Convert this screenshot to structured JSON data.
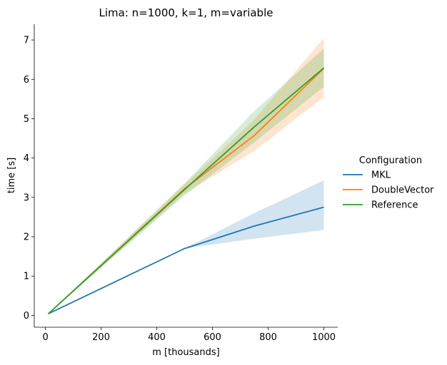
{
  "chart_data": {
    "type": "line",
    "title": "Lima: n=1000, k=1, m=variable",
    "xlabel": "m [thousands]",
    "ylabel": "time [s]",
    "xlim": [
      -40,
      1050
    ],
    "ylim": [
      -0.3,
      7.4
    ],
    "xticks": [
      0,
      200,
      400,
      600,
      800,
      1000
    ],
    "yticks": [
      0,
      1,
      2,
      3,
      4,
      5,
      6,
      7
    ],
    "grid": false,
    "legend": {
      "title": "Configuration",
      "placement": "right"
    },
    "x": [
      10,
      500,
      750,
      1000
    ],
    "series": [
      {
        "name": "MKL",
        "color": "#1f77b4",
        "values": [
          0.04,
          1.7,
          2.27,
          2.75
        ],
        "ci_low": [
          0.04,
          1.7,
          1.95,
          2.17
        ],
        "ci_high": [
          0.04,
          1.7,
          2.6,
          3.43
        ]
      },
      {
        "name": "DoubleVector",
        "color": "#ff7f0e",
        "values": [
          0.04,
          3.22,
          4.57,
          6.28
        ],
        "ci_low": [
          0.04,
          3.1,
          4.18,
          5.55
        ],
        "ci_high": [
          0.04,
          3.33,
          4.97,
          7.05
        ]
      },
      {
        "name": "Reference",
        "color": "#2ca02c",
        "values": [
          0.04,
          3.2,
          4.79,
          6.29
        ],
        "ci_low": [
          0.04,
          3.05,
          4.4,
          5.81
        ],
        "ci_high": [
          0.04,
          3.36,
          5.19,
          6.78
        ]
      }
    ]
  }
}
